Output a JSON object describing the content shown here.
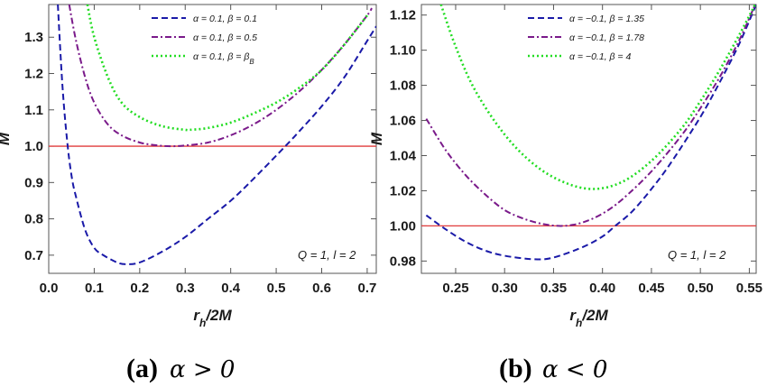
{
  "chart_data": [
    {
      "type": "line",
      "panel_tag": "(a)",
      "caption_math": "α > 0",
      "xlabel": "r_h/2M",
      "ylabel": "M",
      "xlim": [
        0.0,
        0.72
      ],
      "ylim": [
        0.65,
        1.39
      ],
      "xticks": [
        "0.0",
        "0.1",
        "0.2",
        "0.3",
        "0.4",
        "0.5",
        "0.6",
        "0.7"
      ],
      "yticks": [
        "0.7",
        "0.8",
        "0.9",
        "1.0",
        "1.1",
        "1.2",
        "1.3"
      ],
      "annotation": "Q = 1, l = 2",
      "legend_position": "top-center",
      "reference_line": {
        "y": 1.0,
        "color": "#e03c3c"
      },
      "series": [
        {
          "name": "α = 0.1, β = 0.1",
          "color": "#1a1aa8",
          "dash": "dashed",
          "x": [
            0.02,
            0.03,
            0.04,
            0.05,
            0.06,
            0.08,
            0.1,
            0.12,
            0.15,
            0.17,
            0.2,
            0.25,
            0.3,
            0.35,
            0.4,
            0.45,
            0.52,
            0.55,
            0.6,
            0.65,
            0.7,
            0.72
          ],
          "y": [
            1.39,
            1.17,
            1.02,
            0.92,
            0.86,
            0.77,
            0.72,
            0.7,
            0.68,
            0.675,
            0.68,
            0.71,
            0.75,
            0.8,
            0.85,
            0.91,
            1.0,
            1.04,
            1.11,
            1.19,
            1.29,
            1.33
          ]
        },
        {
          "name": "α = 0.1, β = 0.5",
          "color": "#7a1a8a",
          "dash": "dashdot",
          "x": [
            0.045,
            0.06,
            0.08,
            0.1,
            0.13,
            0.16,
            0.2,
            0.24,
            0.27,
            0.3,
            0.35,
            0.4,
            0.45,
            0.5,
            0.55,
            0.6,
            0.65,
            0.7,
            0.71
          ],
          "y": [
            1.39,
            1.29,
            1.19,
            1.12,
            1.06,
            1.03,
            1.01,
            1.002,
            1.0,
            1.002,
            1.01,
            1.03,
            1.06,
            1.1,
            1.15,
            1.21,
            1.28,
            1.36,
            1.38
          ]
        },
        {
          "name": "α = 0.1, β = β_B",
          "color": "#22dd22",
          "dash": "dotted",
          "x": [
            0.085,
            0.1,
            0.13,
            0.16,
            0.2,
            0.25,
            0.3,
            0.31,
            0.35,
            0.4,
            0.45,
            0.5,
            0.55,
            0.6,
            0.65,
            0.7
          ],
          "y": [
            1.39,
            1.3,
            1.19,
            1.12,
            1.08,
            1.055,
            1.045,
            1.045,
            1.05,
            1.065,
            1.09,
            1.12,
            1.16,
            1.21,
            1.28,
            1.36
          ]
        }
      ]
    },
    {
      "type": "line",
      "panel_tag": "(b)",
      "caption_math": "α < 0",
      "xlabel": "r_h/2M",
      "ylabel": "M",
      "xlim": [
        0.215,
        0.557
      ],
      "ylim": [
        0.973,
        1.126
      ],
      "xticks": [
        "0.25",
        "0.30",
        "0.35",
        "0.40",
        "0.45",
        "0.50",
        "0.55"
      ],
      "yticks": [
        "0.98",
        "1.00",
        "1.02",
        "1.04",
        "1.06",
        "1.08",
        "1.10",
        "1.12"
      ],
      "annotation": "Q = 1, l = 2",
      "legend_position": "top-center",
      "reference_line": {
        "y": 1.0,
        "color": "#e03c3c"
      },
      "series": [
        {
          "name": "α = −0.1, β = 1.35",
          "color": "#1a1aa8",
          "dash": "dashed",
          "x": [
            0.22,
            0.24,
            0.26,
            0.28,
            0.3,
            0.33,
            0.35,
            0.38,
            0.4,
            0.413,
            0.43,
            0.45,
            0.47,
            0.5,
            0.52,
            0.54,
            0.557
          ],
          "y": [
            1.006,
            0.998,
            0.991,
            0.986,
            0.983,
            0.981,
            0.982,
            0.988,
            0.994,
            1.0,
            1.008,
            1.021,
            1.036,
            1.062,
            1.082,
            1.104,
            1.126
          ]
        },
        {
          "name": "α = −0.1, β = 1.78",
          "color": "#7a1a8a",
          "dash": "dashdot",
          "x": [
            0.22,
            0.24,
            0.26,
            0.28,
            0.3,
            0.32,
            0.34,
            0.36,
            0.38,
            0.4,
            0.42,
            0.45,
            0.48,
            0.5,
            0.52,
            0.54,
            0.556
          ],
          "y": [
            1.061,
            1.043,
            1.029,
            1.018,
            1.009,
            1.004,
            1.001,
            1.0,
            1.002,
            1.007,
            1.015,
            1.031,
            1.051,
            1.067,
            1.085,
            1.106,
            1.126
          ]
        },
        {
          "name": "α = −0.1, β = 4",
          "color": "#22dd22",
          "dash": "dotted",
          "x": [
            0.235,
            0.25,
            0.27,
            0.3,
            0.33,
            0.36,
            0.39,
            0.42,
            0.45,
            0.48,
            0.5,
            0.52,
            0.54,
            0.556
          ],
          "y": [
            1.126,
            1.102,
            1.077,
            1.052,
            1.035,
            1.025,
            1.021,
            1.025,
            1.037,
            1.055,
            1.071,
            1.089,
            1.109,
            1.126
          ]
        }
      ]
    }
  ]
}
